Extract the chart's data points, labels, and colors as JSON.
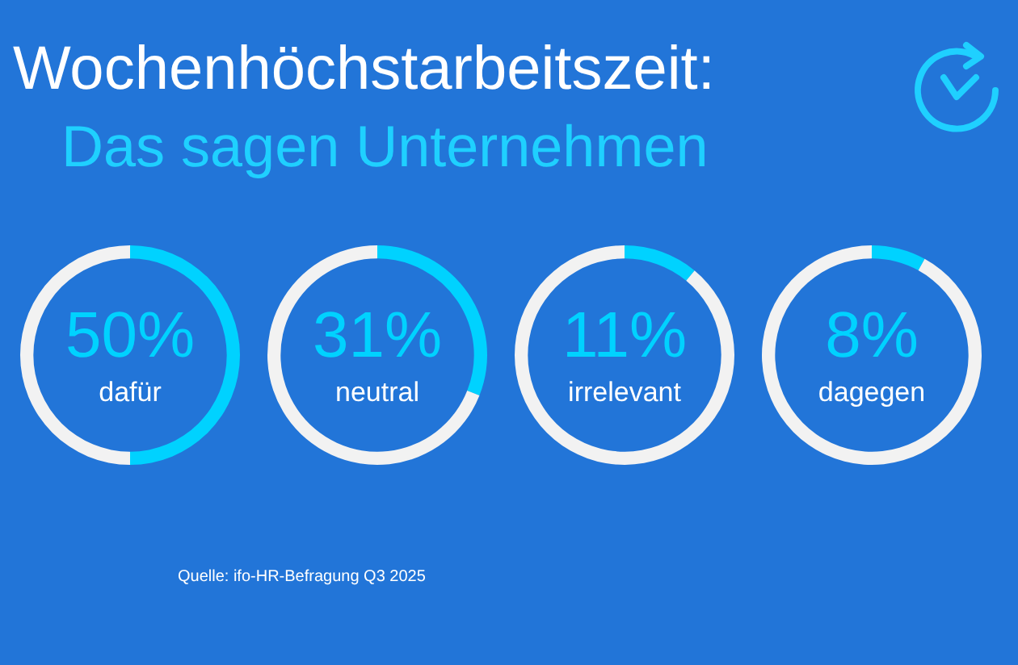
{
  "chart_data": [
    {
      "type": "donut",
      "title": "Wochenhöchstarbeitszeit:",
      "subtitle": "Das sagen Unternehmen",
      "annotations": [
        "Quelle: ifo-HR-Befragung Q3 2025"
      ],
      "categories": [
        "dafür",
        null
      ],
      "values": [
        50,
        50
      ],
      "colors": [
        "#00d2ff",
        "#f2f2f2"
      ],
      "value_labels": [
        "50%",
        null
      ]
    },
    {
      "type": "donut",
      "categories": [
        "neutral",
        null
      ],
      "values": [
        31,
        69
      ],
      "colors": [
        "#00d2ff",
        "#f2f2f2"
      ],
      "value_labels": [
        "31%",
        null
      ]
    },
    {
      "type": "donut",
      "categories": [
        "irrelevant",
        null
      ],
      "values": [
        11,
        89
      ],
      "colors": [
        "#00d2ff",
        "#f2f2f2"
      ],
      "value_labels": [
        "11%",
        null
      ]
    },
    {
      "type": "donut",
      "categories": [
        "dagegen",
        null
      ],
      "values": [
        8,
        92
      ],
      "colors": [
        "#00d2ff",
        "#f2f2f2"
      ],
      "value_labels": [
        "8%",
        null
      ]
    }
  ]
}
